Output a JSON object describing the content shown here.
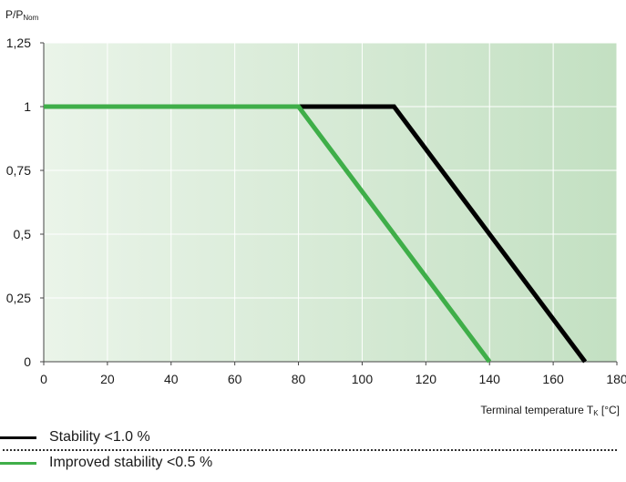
{
  "chart_data": {
    "type": "line",
    "ylabel_main": "P/P",
    "ylabel_sub": "Nom",
    "xlabel_main": "Terminal temperature T",
    "xlabel_sub": "K",
    "xlabel_unit": " [°C]",
    "xlim": [
      0,
      180
    ],
    "ylim": [
      0,
      1.25
    ],
    "x_ticks": [
      "0",
      "20",
      "40",
      "60",
      "80",
      "100",
      "120",
      "140",
      "160",
      "180"
    ],
    "x_tick_values": [
      0,
      20,
      40,
      60,
      80,
      100,
      120,
      140,
      160,
      180
    ],
    "y_ticks": [
      "0",
      "0,25",
      "0,5",
      "0,75",
      "1",
      "1,25"
    ],
    "y_tick_values": [
      0,
      0.25,
      0.5,
      0.75,
      1,
      1.25
    ],
    "grid": true,
    "legend_position": "bottom",
    "series": [
      {
        "name": "Stability <1.0 %",
        "color": "#000000",
        "x": [
          0,
          110,
          170
        ],
        "y": [
          1,
          1,
          0
        ]
      },
      {
        "name": "Improved stability <0.5 %",
        "color": "#3fae49",
        "x": [
          0,
          80,
          140
        ],
        "y": [
          1,
          1,
          0
        ]
      }
    ],
    "background_gradient": [
      "#eaf4e9",
      "#c3e0c2"
    ],
    "grid_color": "#ffffff"
  }
}
